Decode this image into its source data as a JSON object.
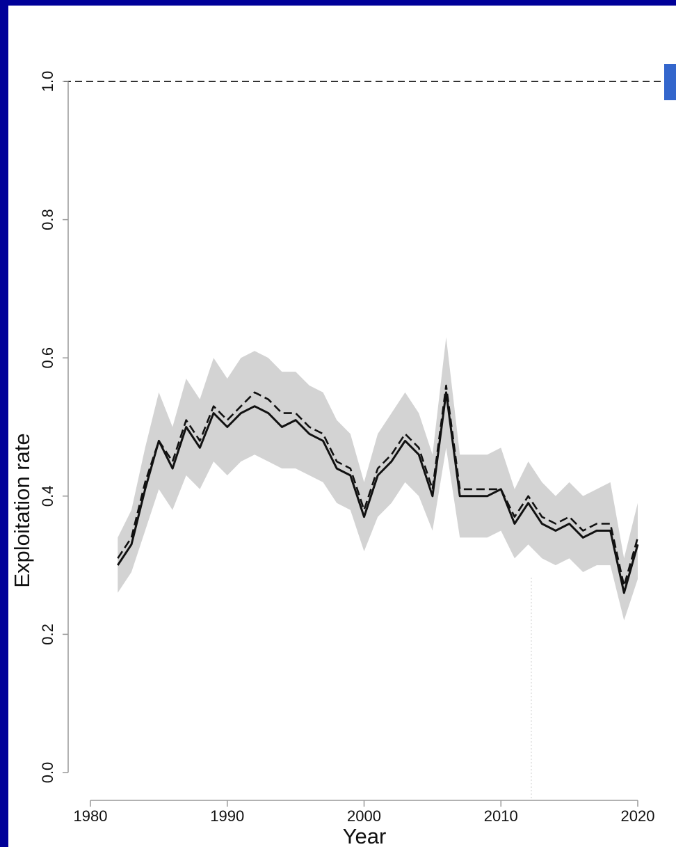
{
  "chart_data": {
    "type": "line",
    "xlabel": "Year",
    "ylabel": "Exploitation rate",
    "xlim": [
      1980,
      2020
    ],
    "ylim": [
      0.0,
      1.0
    ],
    "x_ticks": [
      "1980",
      "1990",
      "2000",
      "2010",
      "2020"
    ],
    "y_ticks": [
      "0.0",
      "0.2",
      "0.4",
      "0.6",
      "0.8",
      "1.0"
    ],
    "reference_line": 1.0,
    "grid": false,
    "x": [
      1982,
      1983,
      1984,
      1985,
      1986,
      1987,
      1988,
      1989,
      1990,
      1991,
      1992,
      1993,
      1994,
      1995,
      1996,
      1997,
      1998,
      1999,
      2000,
      2001,
      2002,
      2003,
      2004,
      2005,
      2006,
      2007,
      2008,
      2009,
      2010,
      2011,
      2012,
      2013,
      2014,
      2015,
      2016,
      2017,
      2018,
      2019,
      2020
    ],
    "series": [
      {
        "style": "solid",
        "values": [
          0.3,
          0.33,
          0.41,
          0.48,
          0.44,
          0.5,
          0.47,
          0.52,
          0.5,
          0.52,
          0.53,
          0.52,
          0.5,
          0.51,
          0.49,
          0.48,
          0.44,
          0.43,
          0.37,
          0.43,
          0.45,
          0.48,
          0.46,
          0.4,
          0.55,
          0.4,
          0.4,
          0.4,
          0.41,
          0.36,
          0.39,
          0.36,
          0.35,
          0.36,
          0.34,
          0.35,
          0.35,
          0.26,
          0.33
        ]
      },
      {
        "style": "dashed",
        "values": [
          0.31,
          0.34,
          0.42,
          0.48,
          0.45,
          0.51,
          0.48,
          0.53,
          0.51,
          0.53,
          0.55,
          0.54,
          0.52,
          0.52,
          0.5,
          0.49,
          0.45,
          0.44,
          0.38,
          0.44,
          0.46,
          0.49,
          0.47,
          0.41,
          0.56,
          0.41,
          0.41,
          0.41,
          0.41,
          0.37,
          0.4,
          0.37,
          0.36,
          0.37,
          0.35,
          0.36,
          0.36,
          0.27,
          0.34
        ]
      }
    ],
    "band": {
      "lower": [
        0.26,
        0.29,
        0.35,
        0.41,
        0.38,
        0.43,
        0.41,
        0.45,
        0.43,
        0.45,
        0.46,
        0.45,
        0.44,
        0.44,
        0.43,
        0.42,
        0.39,
        0.38,
        0.32,
        0.37,
        0.39,
        0.42,
        0.4,
        0.35,
        0.47,
        0.34,
        0.34,
        0.34,
        0.35,
        0.31,
        0.33,
        0.31,
        0.3,
        0.31,
        0.29,
        0.3,
        0.3,
        0.22,
        0.28
      ],
      "upper": [
        0.34,
        0.38,
        0.47,
        0.55,
        0.5,
        0.57,
        0.54,
        0.6,
        0.57,
        0.6,
        0.61,
        0.6,
        0.58,
        0.58,
        0.56,
        0.55,
        0.51,
        0.49,
        0.42,
        0.49,
        0.52,
        0.55,
        0.52,
        0.46,
        0.63,
        0.46,
        0.46,
        0.46,
        0.47,
        0.41,
        0.45,
        0.42,
        0.4,
        0.42,
        0.4,
        0.41,
        0.42,
        0.31,
        0.39
      ]
    },
    "colors": {
      "band": "#d3d3d3",
      "line": "#111111",
      "frame": "#000099"
    }
  }
}
